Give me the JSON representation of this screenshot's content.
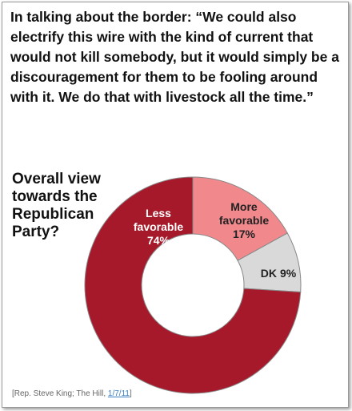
{
  "quote": "In talking about the border: “We could also electrify this wire with the kind of current that would not kill somebody, but it would simply be a discouragement for them to be fooling around with it. We do that with livestock all the time.”",
  "chart_data": {
    "type": "donut",
    "title": "Overall view towards the Republican Party?",
    "categories": [
      "More favorable",
      "DK",
      "Less favorable"
    ],
    "values": [
      17,
      9,
      74
    ],
    "value_labels": [
      "17%",
      "9%",
      "74%"
    ],
    "colors": [
      "#f0888c",
      "#d9d9d9",
      "#a6192a"
    ]
  },
  "source": {
    "text": "[Rep. Steve King; The Hill,",
    "link": "1/7/11",
    "close": "]"
  }
}
